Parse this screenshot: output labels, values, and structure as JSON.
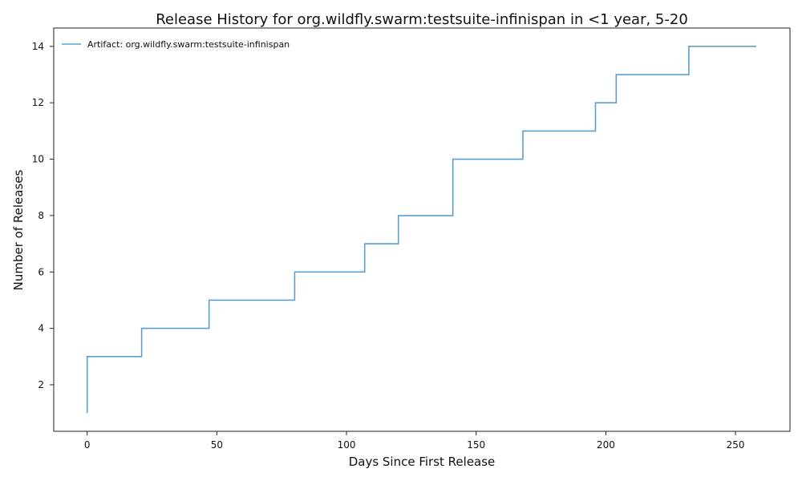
{
  "chart_data": {
    "type": "line",
    "title": "Release History for org.wildfly.swarm:testsuite-infinispan in <1 year, 5-20",
    "xlabel": "Days Since First Release",
    "ylabel": "Number of Releases",
    "xlim": [
      -12.9,
      271.0
    ],
    "ylim": [
      0.35,
      14.65
    ],
    "xticks": [
      0,
      50,
      100,
      150,
      200,
      250
    ],
    "yticks": [
      2,
      4,
      6,
      8,
      10,
      12,
      14
    ],
    "grid": false,
    "legend_position": "top-left",
    "step": "post",
    "series": [
      {
        "name": "Artifact: org.wildfly.swarm:testsuite-infinispan",
        "color": "#5a9fcf",
        "x": [
          0,
          0,
          21,
          47,
          80,
          107,
          120,
          141,
          168,
          196,
          204,
          232,
          258
        ],
        "y": [
          1,
          3,
          4,
          5,
          6,
          7,
          8,
          10,
          11,
          12,
          13,
          14,
          14
        ]
      }
    ]
  }
}
